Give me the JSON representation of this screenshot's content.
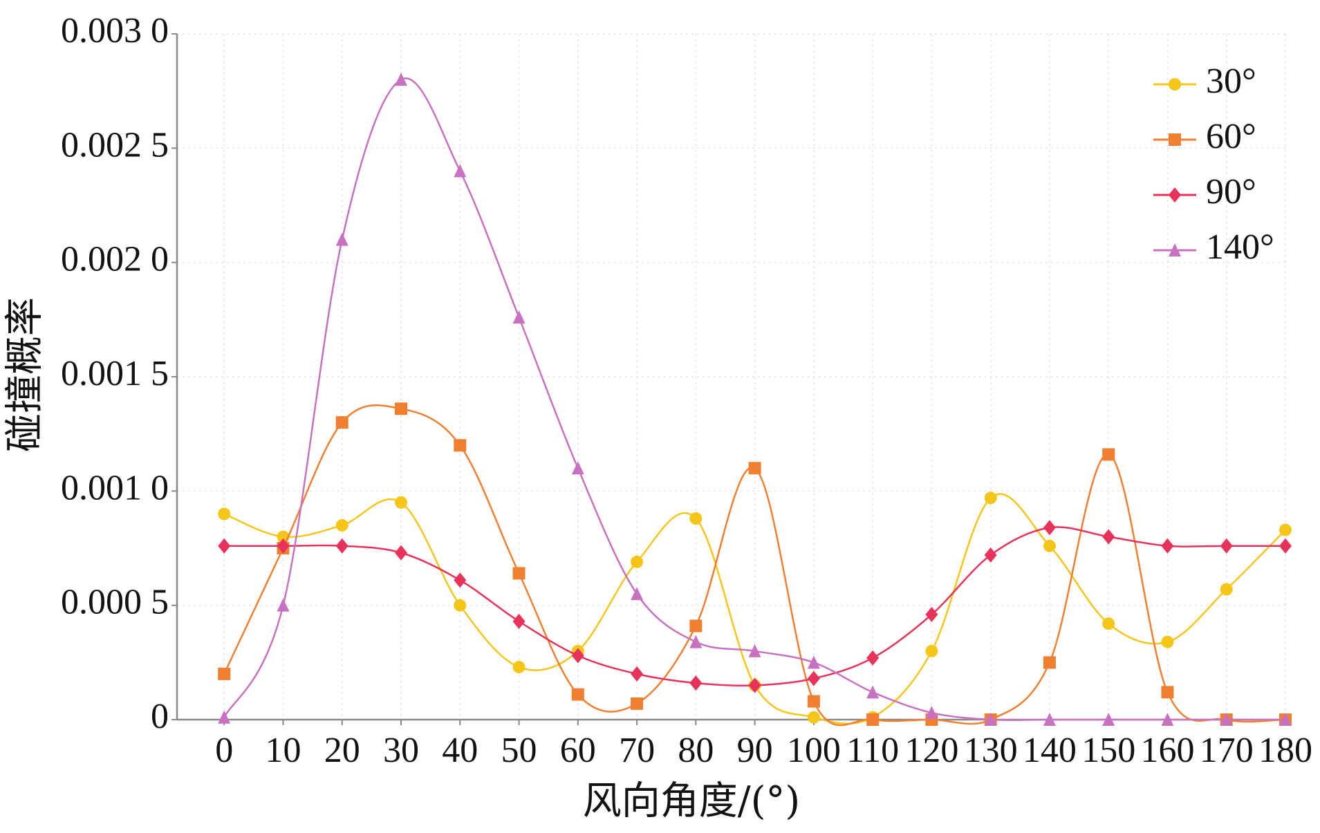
{
  "chart_data": {
    "type": "line",
    "x_label": "风向角度/(°)",
    "y_label": "碰撞概率",
    "x": [
      0,
      10,
      20,
      30,
      40,
      50,
      60,
      70,
      80,
      90,
      100,
      110,
      120,
      130,
      140,
      150,
      160,
      170,
      180
    ],
    "xlim": [
      -8,
      180
    ],
    "xticks": [
      0,
      10,
      20,
      30,
      40,
      50,
      60,
      70,
      80,
      90,
      100,
      110,
      120,
      130,
      140,
      150,
      160,
      170,
      180
    ],
    "ylim": [
      0,
      0.003
    ],
    "yticks": [
      0,
      {
        "value": 0.0005,
        "label": "0.000 5"
      },
      {
        "value": 0.001,
        "label": "0.001 0"
      },
      {
        "value": 0.0015,
        "label": "0.001 5"
      },
      {
        "value": 0.002,
        "label": "0.002 0"
      },
      {
        "value": 0.0025,
        "label": "0.002 5"
      },
      {
        "value": 0.003,
        "label": "0.003 0"
      }
    ],
    "grid": true,
    "legend": "upper right",
    "series": [
      {
        "name": "30°",
        "color": "#f5c518",
        "marker": "circle",
        "values": [
          0.0009,
          0.0008,
          0.00085,
          0.00095,
          0.0005,
          0.00023,
          0.0003,
          0.00069,
          0.00088,
          0.00015,
          1e-05,
          1e-05,
          0.0003,
          0.00097,
          0.00076,
          0.00042,
          0.00034,
          0.00057,
          0.00083
        ]
      },
      {
        "name": "60°",
        "color": "#f07f30",
        "marker": "square",
        "values": [
          0.0002,
          0.00075,
          0.0013,
          0.00136,
          0.0012,
          0.00064,
          0.00011,
          7e-05,
          0.00041,
          0.0011,
          8e-05,
          0,
          0,
          0,
          0.00025,
          0.00116,
          0.00012,
          0,
          0
        ]
      },
      {
        "name": "90°",
        "color": "#e8325a",
        "marker": "diamond",
        "values": [
          0.00076,
          0.00076,
          0.00076,
          0.00073,
          0.00061,
          0.00043,
          0.00028,
          0.0002,
          0.00016,
          0.00015,
          0.00018,
          0.00027,
          0.00046,
          0.00072,
          0.00084,
          0.0008,
          0.00076,
          0.00076,
          0.00076
        ]
      },
      {
        "name": "140°",
        "color": "#c771c0",
        "marker": "triangle",
        "values": [
          1e-05,
          0.0005,
          0.0021,
          0.0028,
          0.0024,
          0.00176,
          0.0011,
          0.00055,
          0.00034,
          0.0003,
          0.00025,
          0.00012,
          3e-05,
          0,
          0,
          0,
          0,
          0,
          0
        ]
      }
    ]
  }
}
